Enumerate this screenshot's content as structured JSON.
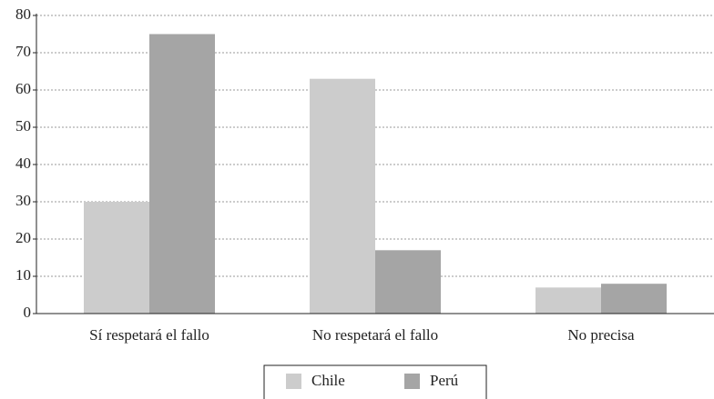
{
  "chart_data": {
    "type": "bar",
    "categories": [
      "Sí respetará el fallo",
      "No respetará el fallo",
      "No precisa"
    ],
    "series": [
      {
        "name": "Chile",
        "color": "#cccccc",
        "values": [
          30,
          63,
          7
        ]
      },
      {
        "name": "Perú",
        "color": "#a5a5a5",
        "values": [
          75,
          17,
          8
        ]
      }
    ],
    "ylim": [
      0,
      80
    ],
    "yticks": [
      0,
      10,
      20,
      30,
      40,
      50,
      60,
      70,
      80
    ],
    "grid": true,
    "legend": "bottom"
  }
}
